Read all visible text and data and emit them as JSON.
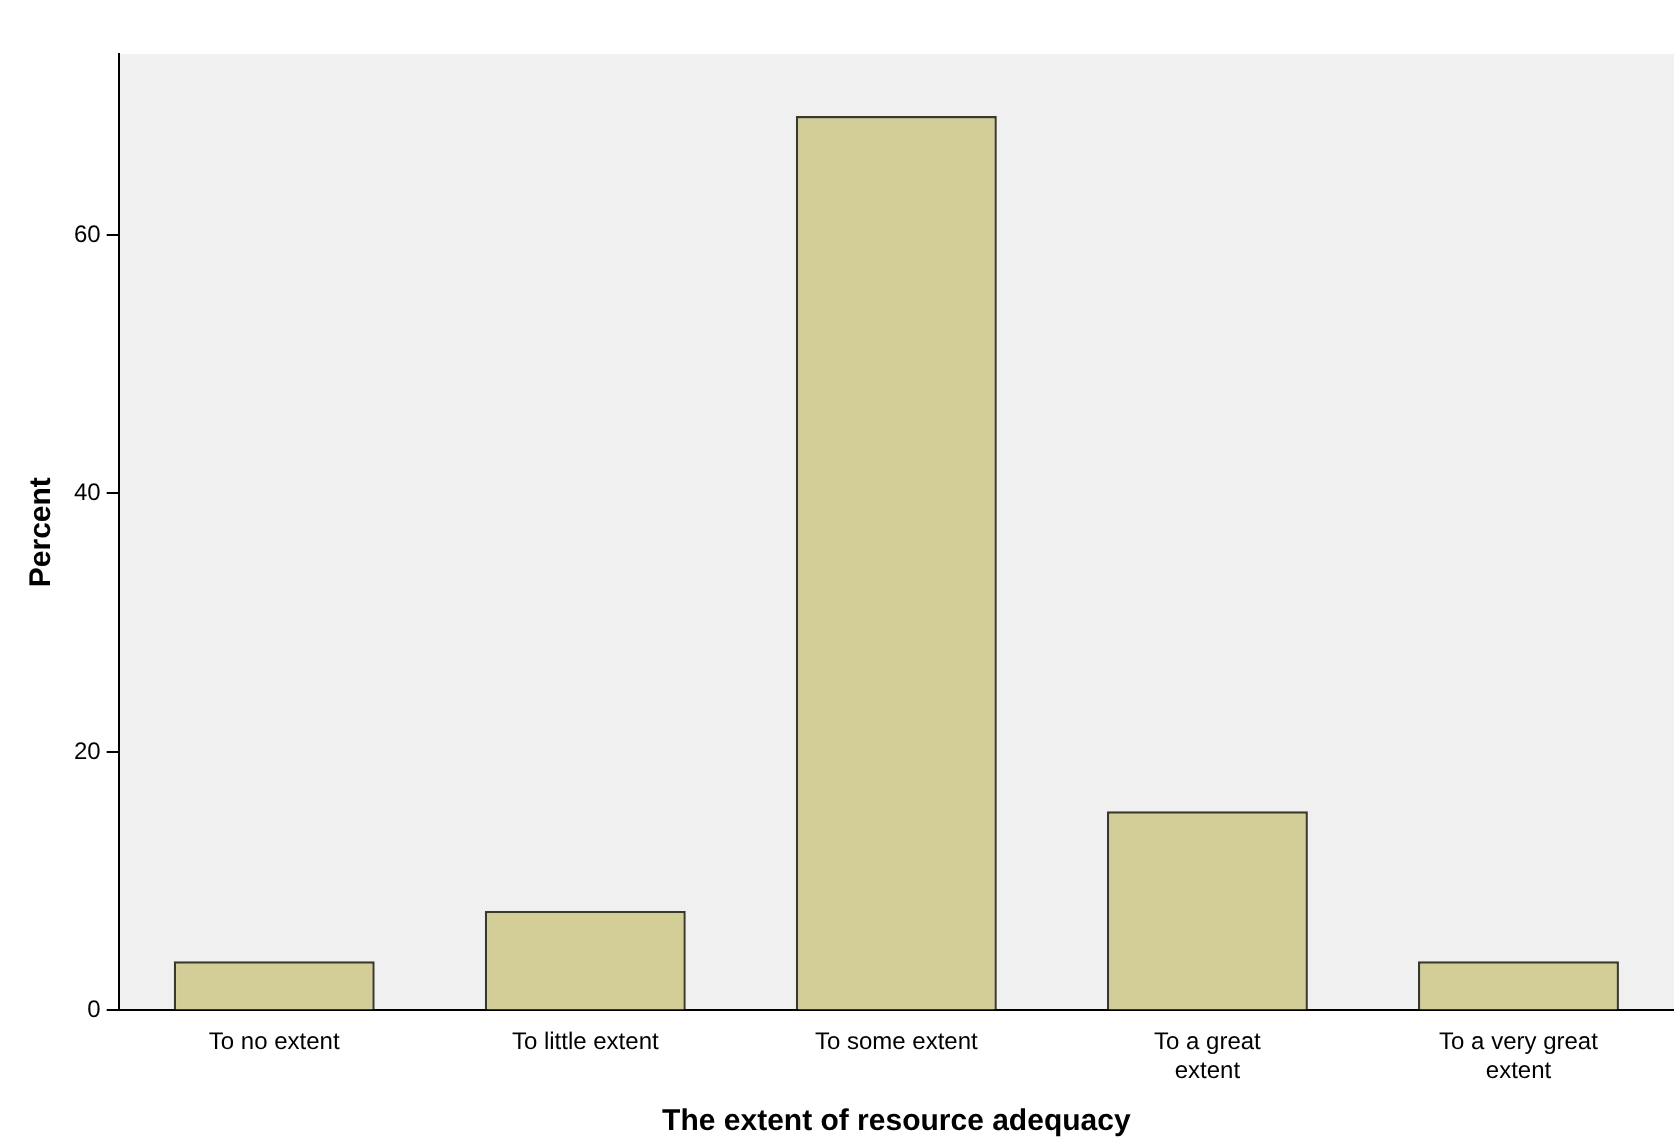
{
  "chart_data": {
    "type": "bar",
    "xlabel": "The extent of resource adequacy",
    "ylabel": "Percent",
    "categories": [
      "To no extent",
      "To little extent",
      "To some extent",
      "To a great extent",
      "To a very great extent"
    ],
    "values": [
      3.8,
      7.7,
      69.2,
      15.4,
      3.8
    ],
    "color": "#d3ce97",
    "ylim": [
      0,
      74
    ],
    "yticks": [
      0,
      20,
      40,
      60
    ],
    "grid": false,
    "legend": false
  }
}
